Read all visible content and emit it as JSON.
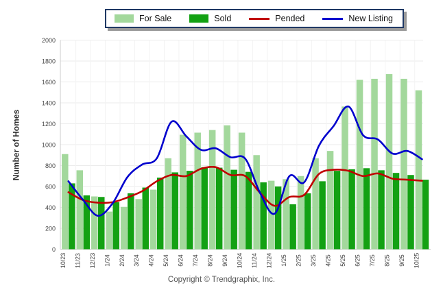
{
  "y_axis_title": "Number of Homes",
  "footer": {
    "copyright": "Copyright © Trendgraphix, Inc."
  },
  "chart_data": {
    "type": "bar+line",
    "title": "",
    "xlabel": "",
    "ylabel": "Number of Homes",
    "ylim": [
      0,
      2000
    ],
    "ytick_step": 200,
    "grid": true,
    "legend_position": "top",
    "categories": [
      "10/23",
      "11/23",
      "12/23",
      "1/24",
      "2/24",
      "3/24",
      "4/24",
      "5/24",
      "6/24",
      "7/24",
      "8/24",
      "9/24",
      "10/24",
      "11/24",
      "12/24",
      "1/25",
      "2/25",
      "3/25",
      "4/25",
      "5/25",
      "6/25",
      "7/25",
      "8/25",
      "9/25",
      "10/25"
    ],
    "series": [
      {
        "name": "For Sale",
        "type": "bar",
        "color": "#a3d89c",
        "values": [
          910,
          755,
          505,
          360,
          405,
          480,
          570,
          870,
          1095,
          1115,
          1140,
          1185,
          1115,
          900,
          655,
          670,
          700,
          870,
          940,
          1365,
          1620,
          1630,
          1675,
          1630,
          1520
        ]
      },
      {
        "name": "Sold",
        "type": "bar",
        "color": "#13a113",
        "values": [
          630,
          515,
          500,
          450,
          535,
          590,
          685,
          735,
          750,
          785,
          780,
          760,
          740,
          640,
          600,
          430,
          535,
          650,
          750,
          765,
          775,
          755,
          730,
          710,
          665
        ]
      },
      {
        "name": "Pended",
        "type": "line",
        "color": "#c00000",
        "values": [
          545,
          470,
          445,
          450,
          495,
          555,
          650,
          710,
          700,
          770,
          785,
          710,
          700,
          540,
          415,
          500,
          520,
          720,
          760,
          750,
          700,
          725,
          675,
          665,
          655
        ]
      },
      {
        "name": "New Listing",
        "type": "line",
        "color": "#0000cd",
        "values": [
          650,
          470,
          320,
          440,
          690,
          810,
          870,
          1220,
          1080,
          950,
          965,
          880,
          865,
          540,
          340,
          700,
          640,
          990,
          1180,
          1365,
          1090,
          1050,
          915,
          940,
          860
        ]
      }
    ]
  }
}
